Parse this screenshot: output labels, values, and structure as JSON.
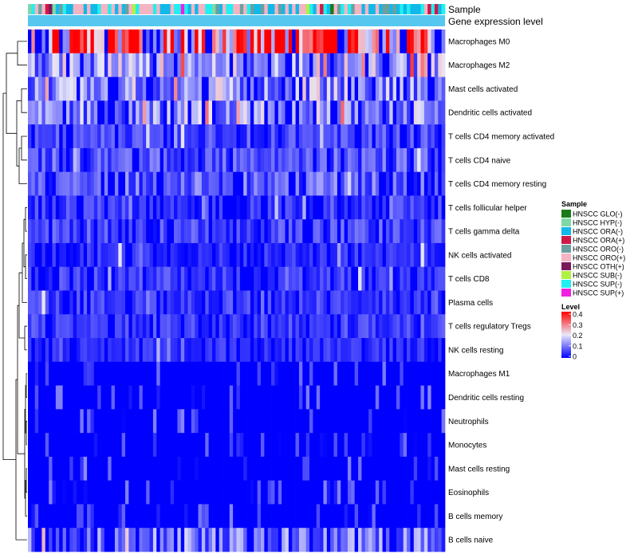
{
  "chart_data": {
    "type": "heatmap",
    "annotation_labels": {
      "sample": "Sample",
      "gene_expression": "Gene expression level"
    },
    "rows": [
      "Macrophages M0",
      "Macrophages M2",
      "Mast cells activated",
      "Dendritic cells activated",
      "T cells CD4 memory activated",
      "T cells CD4 naive",
      "T cells CD4 memory resting",
      "T cells follicular helper",
      "T cells gamma delta",
      "NK cells activated",
      "T cells CD8",
      "Plasma cells",
      "T cells regulatory  Tregs",
      "NK cells resting",
      "Macrophages M1",
      "Dendritic cells resting",
      "Neutrophils",
      "Monocytes",
      "Mast cells resting",
      "Eosinophils",
      "B cells memory",
      "B cells naive"
    ],
    "row_mean_levels": [
      0.3,
      0.14,
      0.13,
      0.13,
      0.06,
      0.07,
      0.08,
      0.05,
      0.06,
      0.04,
      0.05,
      0.05,
      0.05,
      0.04,
      0.01,
      0.01,
      0.02,
      0.02,
      0.02,
      0.01,
      0.01,
      0.1
    ],
    "n_samples": 120,
    "sample_legend": {
      "title": "Sample",
      "items": [
        {
          "label": "HNSCC GLO(-)",
          "color": "#1a7a1a"
        },
        {
          "label": "HNSCC HYP(-)",
          "color": "#80d8a8"
        },
        {
          "label": "HNSCC ORA(-)",
          "color": "#12b8e8"
        },
        {
          "label": "HNSCC ORA(+)",
          "color": "#d01848"
        },
        {
          "label": "HNSCC ORO(-)",
          "color": "#6ba0a0"
        },
        {
          "label": "HNSCC ORO(+)",
          "color": "#f4b4c4"
        },
        {
          "label": "HNSCC OTH(+)",
          "color": "#7a1a5a"
        },
        {
          "label": "HNSCC SUB(-)",
          "color": "#b0f040"
        },
        {
          "label": "HNSCC SUP(-)",
          "color": "#20f0f0"
        },
        {
          "label": "HNSCC SUP(+)",
          "color": "#f020e0"
        }
      ]
    },
    "level_legend": {
      "title": "Level",
      "ticks": [
        "0.4",
        "0.3",
        "0.2",
        "0.1",
        "0"
      ],
      "tick_values": [
        0.4,
        0.3,
        0.2,
        0.1,
        0
      ],
      "range": [
        0,
        0.4
      ],
      "colors": {
        "low": "#0000ff",
        "mid": "#e8e8f8",
        "high": "#ff0000"
      }
    },
    "gene_expression_bar_color": "#56c8f0"
  }
}
